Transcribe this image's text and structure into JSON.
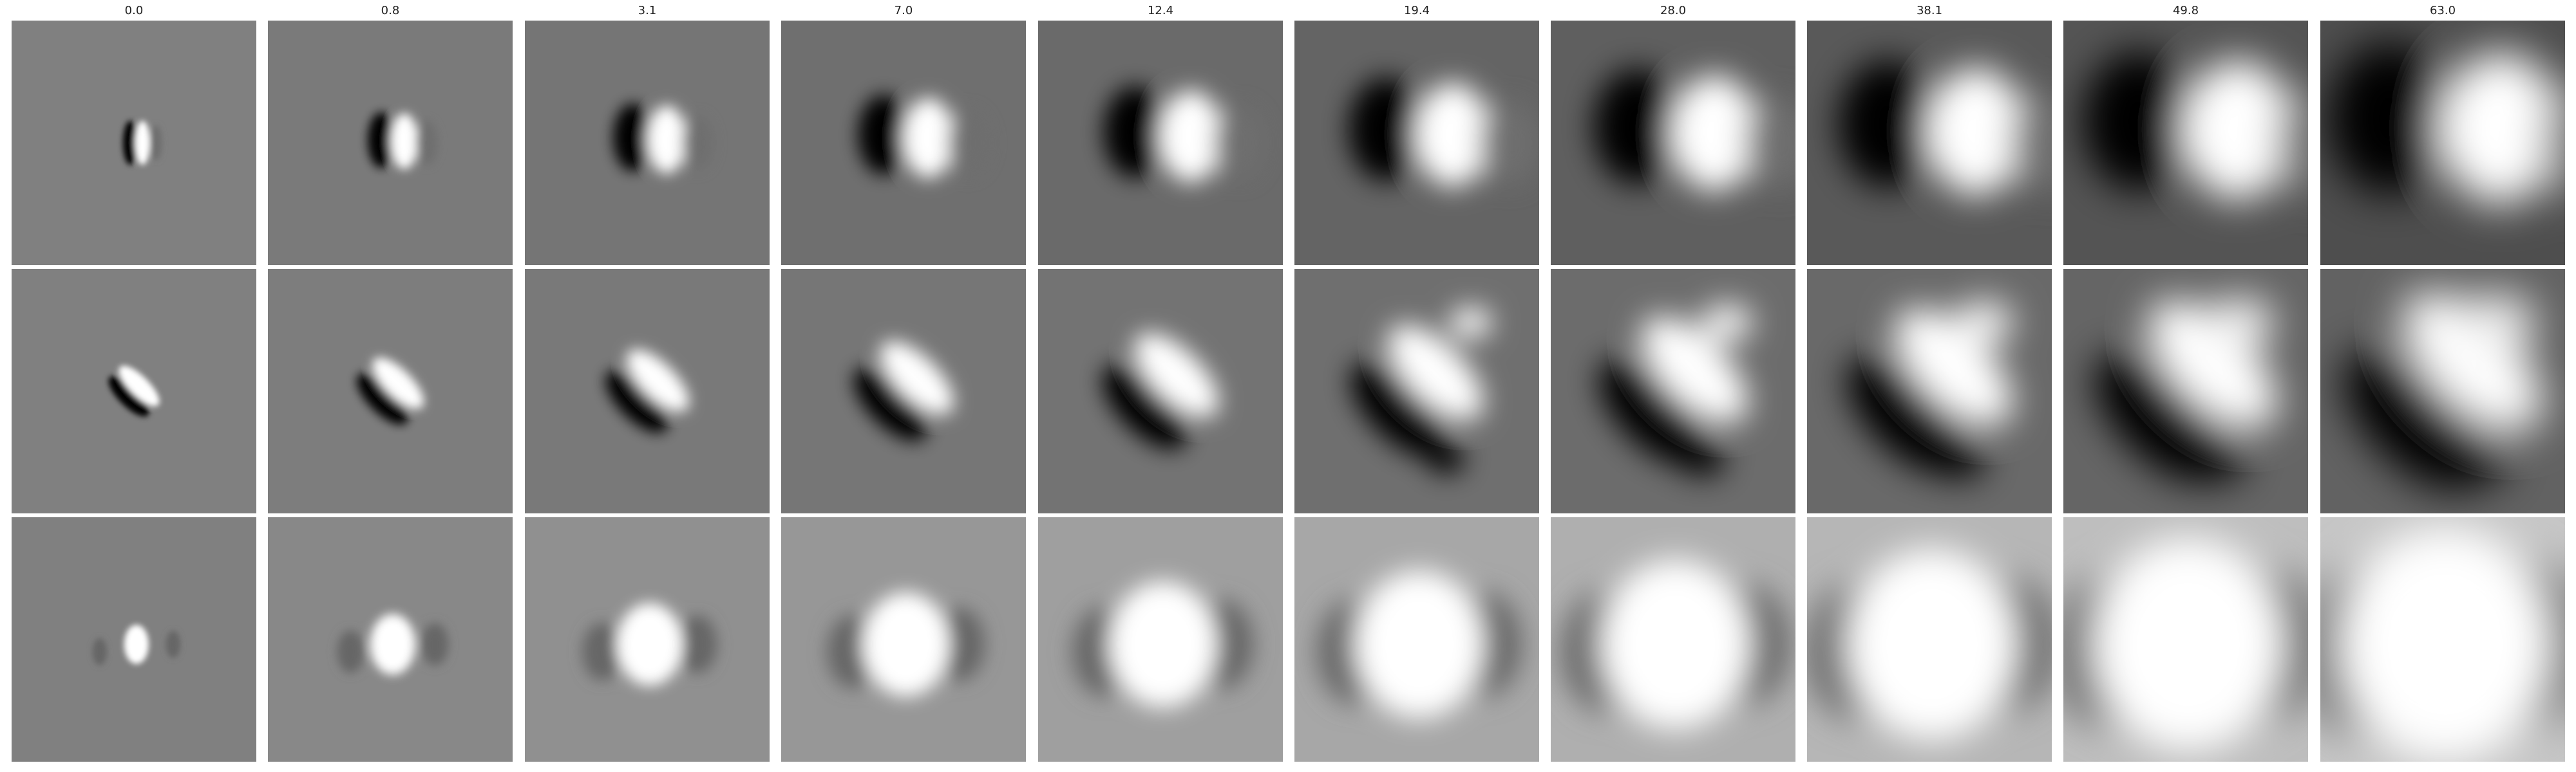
{
  "columns": [
    "0.0",
    "0.8",
    "3.1",
    "7.0",
    "12.4",
    "19.4",
    "28.0",
    "38.1",
    "49.8",
    "63.0"
  ],
  "rows": [
    {
      "pattern": "vertical-dark-left-bright-right"
    },
    {
      "pattern": "diagonal-dark-bright-bands"
    },
    {
      "pattern": "central-bright-blob"
    }
  ],
  "colors": {
    "background": "#ffffff",
    "panel_neutral": "#808080",
    "dark": "#000000",
    "bright": "#ffffff"
  }
}
